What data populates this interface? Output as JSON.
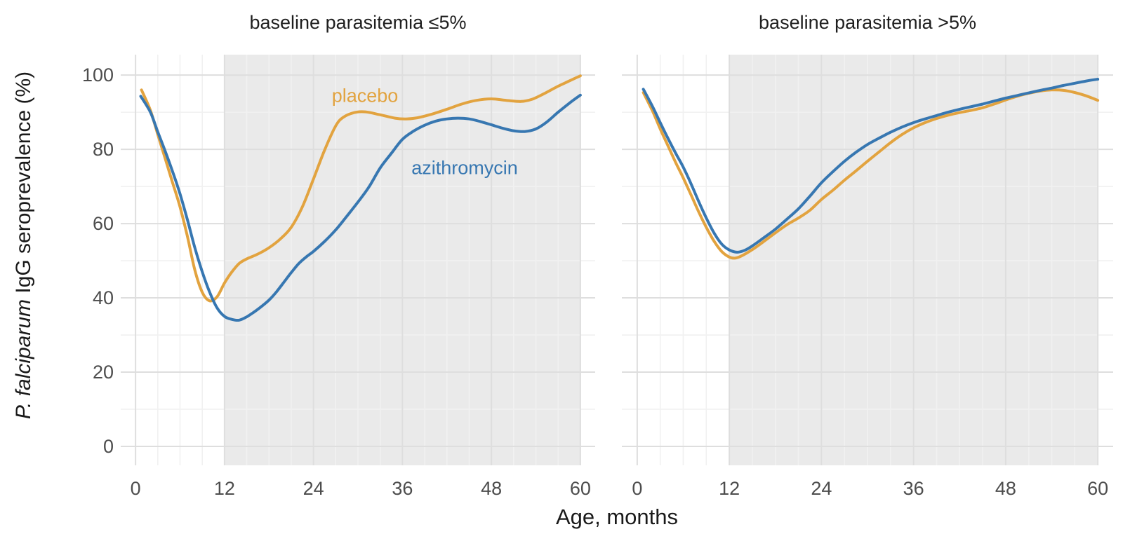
{
  "colors": {
    "placebo": "#E2A33F",
    "azithromycin": "#3777B1",
    "shaded_region": "#EAEAEA",
    "grid_major": "#DEDEDE",
    "grid_minor": "#F1F1F1",
    "tick_text": "#4d4d4d",
    "title_text": "#1a1a1a",
    "background": "#ffffff"
  },
  "y_axis": {
    "label_italic": "P. falciparum",
    "label_rest": " IgG seroprevalence (%)",
    "ticks": [
      0,
      20,
      40,
      60,
      80,
      100
    ],
    "minor_ticks": [
      10,
      30,
      50,
      70,
      90
    ],
    "range": [
      -5.1,
      105.5
    ]
  },
  "x_axis": {
    "label": "Age, months",
    "ticks": [
      0,
      12,
      24,
      36,
      48,
      60
    ],
    "minor_ticks": [
      3,
      6,
      9,
      15,
      18,
      21,
      27,
      30,
      33,
      39,
      42,
      45,
      51,
      54,
      57
    ],
    "range": [
      -2,
      62
    ],
    "shaded_region": [
      12,
      60
    ]
  },
  "panels": [
    {
      "title": "baseline parasitemia ≤5%"
    },
    {
      "title": "baseline parasitemia >5%"
    }
  ],
  "annotations": {
    "placebo": "placebo",
    "azithromycin": "azithromycin"
  },
  "chart_data": [
    {
      "type": "line",
      "facet": "baseline parasitemia ≤5%",
      "xlabel": "Age, months",
      "ylabel": "P. falciparum IgG seroprevalence (%)",
      "xlim": [
        -2,
        62
      ],
      "ylim": [
        -5.1,
        105.5
      ],
      "shaded_x_region": [
        12,
        60
      ],
      "grid": "major+minor",
      "legend": "direct-labels",
      "series": [
        {
          "name": "placebo",
          "color_key": "placebo",
          "points": [
            [
              0.8,
              96
            ],
            [
              2,
              90.5
            ],
            [
              3,
              84
            ],
            [
              4,
              77.5
            ],
            [
              5,
              71
            ],
            [
              6,
              64.5
            ],
            [
              7,
              56.5
            ],
            [
              8,
              47.5
            ],
            [
              9,
              41.5
            ],
            [
              10,
              39.2
            ],
            [
              11,
              40.3
            ],
            [
              12,
              44
            ],
            [
              13,
              47
            ],
            [
              14,
              49.3
            ],
            [
              15,
              50.5
            ],
            [
              16.5,
              51.8
            ],
            [
              18,
              53.5
            ],
            [
              19.5,
              55.8
            ],
            [
              21,
              59
            ],
            [
              22.5,
              64.5
            ],
            [
              24,
              72
            ],
            [
              25.5,
              79.8
            ],
            [
              27,
              86.3
            ],
            [
              28,
              88.6
            ],
            [
              29.5,
              89.9
            ],
            [
              31,
              90.1
            ],
            [
              33,
              89.3
            ],
            [
              35,
              88.4
            ],
            [
              36.5,
              88.2
            ],
            [
              38,
              88.5
            ],
            [
              40,
              89.5
            ],
            [
              42,
              90.8
            ],
            [
              44,
              92.2
            ],
            [
              46,
              93.2
            ],
            [
              48,
              93.6
            ],
            [
              50,
              93.2
            ],
            [
              52,
              92.9
            ],
            [
              53.5,
              93.5
            ],
            [
              55,
              94.9
            ],
            [
              57,
              97
            ],
            [
              58.5,
              98.4
            ],
            [
              60,
              99.8
            ]
          ]
        },
        {
          "name": "azithromycin",
          "color_key": "azithromycin",
          "points": [
            [
              0.7,
              94.3
            ],
            [
              2,
              90
            ],
            [
              3,
              84.7
            ],
            [
              4,
              79.5
            ],
            [
              5,
              74
            ],
            [
              6,
              68
            ],
            [
              7,
              61
            ],
            [
              8,
              53.5
            ],
            [
              9,
              47
            ],
            [
              10,
              41.5
            ],
            [
              11,
              37.3
            ],
            [
              12,
              35
            ],
            [
              13,
              34.2
            ],
            [
              14,
              34
            ],
            [
              15,
              34.9
            ],
            [
              16,
              36.2
            ],
            [
              17,
              37.7
            ],
            [
              18,
              39.4
            ],
            [
              19,
              41.6
            ],
            [
              20,
              44.2
            ],
            [
              21,
              46.8
            ],
            [
              22,
              49.2
            ],
            [
              23,
              51
            ],
            [
              24,
              52.5
            ],
            [
              25.5,
              55.2
            ],
            [
              27,
              58.3
            ],
            [
              28.5,
              62
            ],
            [
              30,
              65.8
            ],
            [
              31.5,
              69.9
            ],
            [
              33,
              75
            ],
            [
              34.5,
              78.9
            ],
            [
              36,
              82.7
            ],
            [
              37.5,
              84.9
            ],
            [
              39,
              86.5
            ],
            [
              40.5,
              87.6
            ],
            [
              42,
              88.2
            ],
            [
              43.5,
              88.4
            ],
            [
              45,
              88.2
            ],
            [
              46.5,
              87.5
            ],
            [
              48,
              86.6
            ],
            [
              49.5,
              85.7
            ],
            [
              51,
              85
            ],
            [
              52.5,
              84.8
            ],
            [
              54,
              85.5
            ],
            [
              55.5,
              87.4
            ],
            [
              57,
              90
            ],
            [
              58.5,
              92.4
            ],
            [
              60,
              94.6
            ]
          ]
        }
      ]
    },
    {
      "type": "line",
      "facet": "baseline parasitemia >5%",
      "xlabel": "Age, months",
      "ylabel": "P. falciparum IgG seroprevalence (%)",
      "xlim": [
        -2,
        62
      ],
      "ylim": [
        -5.1,
        105.5
      ],
      "shaded_x_region": [
        12,
        60
      ],
      "grid": "major+minor",
      "legend": "direct-labels",
      "series": [
        {
          "name": "placebo",
          "color_key": "placebo",
          "points": [
            [
              0.8,
              95.3
            ],
            [
              2,
              90.3
            ],
            [
              3,
              85.5
            ],
            [
              4,
              81
            ],
            [
              5,
              76.5
            ],
            [
              6,
              72.3
            ],
            [
              7,
              67.8
            ],
            [
              8,
              63.2
            ],
            [
              9,
              59
            ],
            [
              10,
              55.3
            ],
            [
              11,
              52.5
            ],
            [
              12,
              51
            ],
            [
              12.7,
              50.7
            ],
            [
              13.5,
              51.2
            ],
            [
              15,
              53
            ],
            [
              16.5,
              55.2
            ],
            [
              18,
              57.5
            ],
            [
              19.5,
              59.7
            ],
            [
              21,
              61.5
            ],
            [
              22.5,
              63.6
            ],
            [
              24,
              66.5
            ],
            [
              25.5,
              69
            ],
            [
              27,
              71.7
            ],
            [
              28.5,
              74.2
            ],
            [
              30,
              76.8
            ],
            [
              31.5,
              79.3
            ],
            [
              33,
              81.8
            ],
            [
              34.5,
              84
            ],
            [
              36,
              85.8
            ],
            [
              37.5,
              87.2
            ],
            [
              39,
              88.3
            ],
            [
              40.5,
              89.2
            ],
            [
              42,
              89.9
            ],
            [
              43.5,
              90.5
            ],
            [
              45,
              91.2
            ],
            [
              46.5,
              92.2
            ],
            [
              48,
              93.3
            ],
            [
              49.5,
              94.3
            ],
            [
              51,
              95.1
            ],
            [
              52.5,
              95.7
            ],
            [
              54,
              96
            ],
            [
              55.5,
              95.9
            ],
            [
              57,
              95.3
            ],
            [
              58.5,
              94.4
            ],
            [
              60,
              93.2
            ]
          ]
        },
        {
          "name": "azithromycin",
          "color_key": "azithromycin",
          "points": [
            [
              0.8,
              96.2
            ],
            [
              2,
              91.5
            ],
            [
              3,
              87.2
            ],
            [
              4,
              83
            ],
            [
              5,
              79
            ],
            [
              6,
              75.2
            ],
            [
              7,
              70.8
            ],
            [
              8,
              66
            ],
            [
              9,
              61.5
            ],
            [
              10,
              57.5
            ],
            [
              11,
              54.5
            ],
            [
              12,
              52.9
            ],
            [
              13,
              52.3
            ],
            [
              14,
              52.8
            ],
            [
              15,
              54
            ],
            [
              16.5,
              56.2
            ],
            [
              18,
              58.5
            ],
            [
              19.5,
              61.2
            ],
            [
              21,
              64
            ],
            [
              22.5,
              67.4
            ],
            [
              24,
              71
            ],
            [
              25.5,
              74
            ],
            [
              27,
              76.8
            ],
            [
              28.5,
              79.2
            ],
            [
              30,
              81.3
            ],
            [
              31.5,
              83
            ],
            [
              33,
              84.6
            ],
            [
              34.5,
              86
            ],
            [
              36,
              87.2
            ],
            [
              37.5,
              88.2
            ],
            [
              39,
              89.1
            ],
            [
              40.5,
              90
            ],
            [
              42,
              90.8
            ],
            [
              43.5,
              91.5
            ],
            [
              45,
              92.2
            ],
            [
              46.5,
              93
            ],
            [
              48,
              93.8
            ],
            [
              49.5,
              94.5
            ],
            [
              51,
              95.2
            ],
            [
              52.5,
              95.9
            ],
            [
              54,
              96.5
            ],
            [
              55.5,
              97.2
            ],
            [
              57,
              97.8
            ],
            [
              58.5,
              98.4
            ],
            [
              60,
              98.9
            ]
          ]
        }
      ]
    }
  ]
}
